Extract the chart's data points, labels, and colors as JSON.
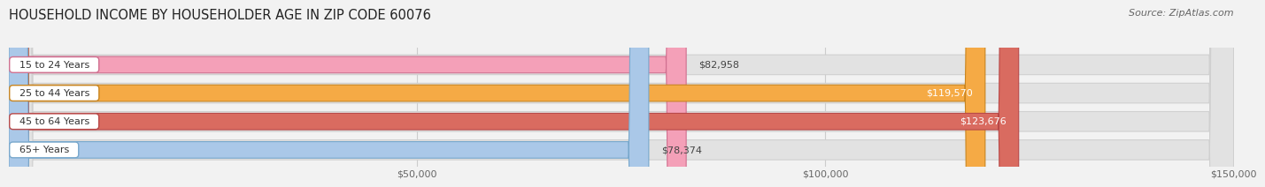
{
  "title": "HOUSEHOLD INCOME BY HOUSEHOLDER AGE IN ZIP CODE 60076",
  "source": "Source: ZipAtlas.com",
  "categories": [
    "15 to 24 Years",
    "25 to 44 Years",
    "45 to 64 Years",
    "65+ Years"
  ],
  "values": [
    82958,
    119570,
    123676,
    78374
  ],
  "bar_colors": [
    "#f4a0b8",
    "#f5aa45",
    "#d96b60",
    "#aac8e8"
  ],
  "bar_edge_colors": [
    "#d07090",
    "#c88520",
    "#b84848",
    "#78a8cc"
  ],
  "label_inside_colors": [
    "#444444",
    "#ffffff",
    "#ffffff",
    "#444444"
  ],
  "label_inside_threshold": 100000,
  "xlim": [
    0,
    150000
  ],
  "xticks": [
    50000,
    100000,
    150000
  ],
  "xtick_labels": [
    "$50,000",
    "$100,000",
    "$150,000"
  ],
  "background_color": "#f2f2f2",
  "bar_bg_color": "#e2e2e2",
  "bar_bg_edge_color": "#d0d0d0",
  "title_fontsize": 10.5,
  "source_fontsize": 8,
  "tick_fontsize": 8,
  "bar_label_fontsize": 8
}
